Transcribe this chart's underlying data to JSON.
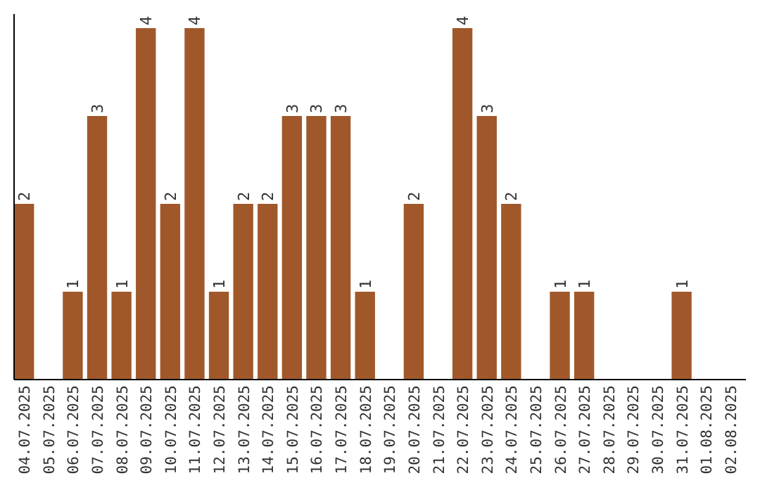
{
  "chart_data": {
    "type": "bar",
    "categories": [
      "04.07.2025",
      "05.07.2025",
      "06.07.2025",
      "07.07.2025",
      "08.07.2025",
      "09.07.2025",
      "10.07.2025",
      "11.07.2025",
      "12.07.2025",
      "13.07.2025",
      "14.07.2025",
      "15.07.2025",
      "16.07.2025",
      "17.07.2025",
      "18.07.2025",
      "19.07.2025",
      "20.07.2025",
      "21.07.2025",
      "22.07.2025",
      "23.07.2025",
      "24.07.2025",
      "25.07.2025",
      "26.07.2025",
      "27.07.2025",
      "28.07.2025",
      "29.07.2025",
      "30.07.2025",
      "31.07.2025",
      "01.08.2025",
      "02.08.2025"
    ],
    "values": [
      2,
      0,
      1,
      3,
      1,
      4,
      2,
      4,
      1,
      2,
      2,
      3,
      3,
      3,
      1,
      0,
      2,
      0,
      4,
      3,
      2,
      0,
      1,
      1,
      0,
      0,
      0,
      1,
      0,
      0
    ],
    "value_labels": [
      "2",
      null,
      "1",
      "3",
      "1",
      "4",
      "2",
      "4",
      "1",
      "2",
      "2",
      "3",
      "3",
      "3",
      "1",
      null,
      "2",
      null,
      "4",
      "3",
      "2",
      null,
      "1",
      "1",
      null,
      null,
      null,
      "1",
      null,
      null
    ],
    "color": "#a0582a",
    "ylim": [
      0,
      4
    ],
    "tick_labels": "x"
  }
}
